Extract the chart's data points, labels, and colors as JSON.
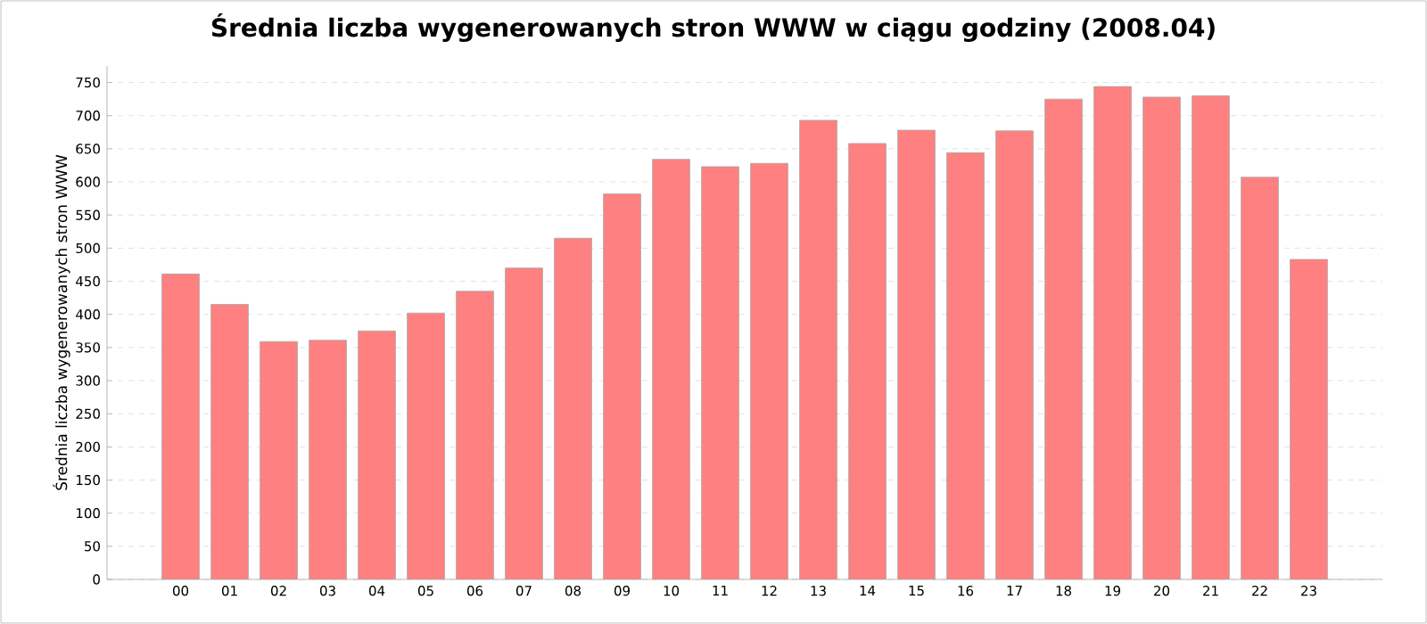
{
  "chart_data": {
    "type": "bar",
    "title": "Średnia liczba wygenerowanych stron WWW w ciągu godziny (2008.04)",
    "ylabel": "Średnia liczba wygenerowanych stron WWW",
    "categories": [
      "00",
      "01",
      "02",
      "03",
      "04",
      "05",
      "06",
      "07",
      "08",
      "09",
      "10",
      "11",
      "12",
      "13",
      "14",
      "15",
      "16",
      "17",
      "18",
      "19",
      "20",
      "21",
      "22",
      "23"
    ],
    "values": [
      461,
      415,
      359,
      361,
      375,
      402,
      435,
      470,
      515,
      582,
      634,
      623,
      628,
      693,
      658,
      678,
      644,
      677,
      725,
      744,
      728,
      730,
      607,
      483
    ],
    "color": "#ff8080",
    "ylim": [
      0,
      775
    ],
    "yticks": [
      0,
      50,
      100,
      150,
      200,
      250,
      300,
      350,
      400,
      450,
      500,
      550,
      600,
      650,
      700,
      750
    ],
    "grid": "y"
  }
}
